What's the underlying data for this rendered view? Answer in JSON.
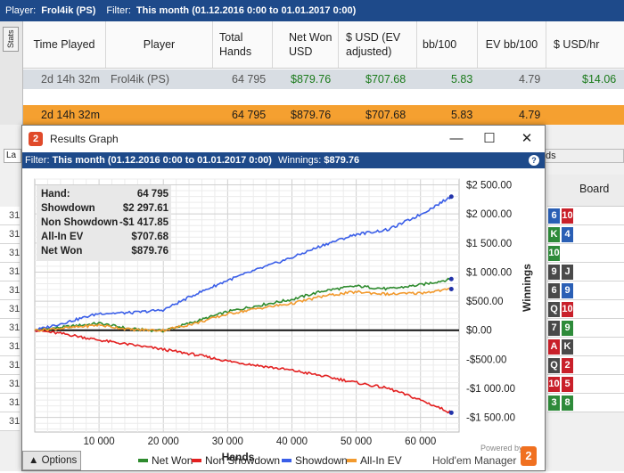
{
  "app": {
    "player_label": "Player:",
    "player_name": "Frol4ik (PS)",
    "filter_label": "Filter:",
    "filter_value": "This month (01.12.2016 0:00 to 01.01.2017 0:00)",
    "stats_tab": "Stats"
  },
  "table": {
    "headers": [
      "Time Played",
      "Player",
      "Total Hands",
      "Net Won USD",
      "$ USD (EV adjusted)",
      "bb/100",
      "EV bb/100",
      "$ USD/hr"
    ],
    "row1": {
      "time": "2d 14h 32m",
      "player": "Frol4ik (PS)",
      "hands": "64 795",
      "net_won": "$879.76",
      "ev_adj": "$707.68",
      "bb100": "5.83",
      "ev_bb100": "4.79",
      "usd_hr": "$14.06"
    },
    "row2": {
      "time": "2d 14h 32m",
      "hands": "64 795",
      "net_won": "$879.76",
      "ev_adj": "$707.68",
      "bb100": "5.83",
      "ev_bb100": "4.79"
    }
  },
  "background": {
    "left_dropdown": "La",
    "right_dropdown": "ds",
    "board_header": "Board",
    "left_rows": [
      "31",
      "31",
      "31",
      "31",
      "31",
      "31",
      "31",
      "31",
      "31",
      "31",
      "31",
      "31"
    ],
    "boards": [
      [
        {
          "r": "6",
          "c": "#2a5fb5"
        },
        {
          "r": "10",
          "c": "#c9202a"
        }
      ],
      [
        {
          "r": "K",
          "c": "#2e8b3a"
        },
        {
          "r": "4",
          "c": "#2a5fb5"
        }
      ],
      [
        {
          "r": "10",
          "c": "#2e8b3a"
        }
      ],
      [
        {
          "r": "9",
          "c": "#4a4a4a"
        },
        {
          "r": "J",
          "c": "#4a4a4a"
        }
      ],
      [
        {
          "r": "6",
          "c": "#4a4a4a"
        },
        {
          "r": "9",
          "c": "#2a5fb5"
        }
      ],
      [
        {
          "r": "Q",
          "c": "#4a4a4a"
        },
        {
          "r": "10",
          "c": "#c9202a"
        }
      ],
      [
        {
          "r": "7",
          "c": "#4a4a4a"
        },
        {
          "r": "9",
          "c": "#2e8b3a"
        }
      ],
      [
        {
          "r": "A",
          "c": "#c9202a"
        },
        {
          "r": "K",
          "c": "#4a4a4a"
        }
      ],
      [
        {
          "r": "Q",
          "c": "#4a4a4a"
        },
        {
          "r": "2",
          "c": "#c9202a"
        }
      ],
      [
        {
          "r": "10",
          "c": "#c9202a"
        },
        {
          "r": "5",
          "c": "#c9202a"
        }
      ],
      [
        {
          "r": "3",
          "c": "#2e8b3a"
        },
        {
          "r": "8",
          "c": "#2e8b3a"
        }
      ]
    ]
  },
  "graph_window": {
    "title": "Results Graph",
    "logo_text": "2",
    "filter_label": "Filter:",
    "filter_value": "This month (01.12.2016 0:00 to 01.01.2017 0:00)",
    "winnings_label": "Winnings:",
    "winnings_value": "$879.76",
    "options_label": "Options",
    "brand_powered": "Powered by",
    "brand_name": "Hold'em Manager",
    "stats": [
      {
        "label": "Hand:",
        "value": "64 795"
      },
      {
        "label": "Showdown",
        "value": "$2 297.61"
      },
      {
        "label": "Non Showdown",
        "value": "-$1 417.85"
      },
      {
        "label": "All-In EV",
        "value": "$707.68"
      },
      {
        "label": "Net Won",
        "value": "$879.76"
      }
    ]
  },
  "chart_data": {
    "type": "line",
    "xlabel": "Hands",
    "ylabel": "Winnings",
    "xlim": [
      0,
      66000
    ],
    "ylim": [
      -1750,
      2600
    ],
    "x_ticks": [
      10000,
      20000,
      30000,
      40000,
      50000,
      60000
    ],
    "x_tick_labels": [
      "10 000",
      "20 000",
      "30 000",
      "40 000",
      "50 000",
      "60 000"
    ],
    "y_ticks": [
      2500,
      2000,
      1500,
      1000,
      500,
      0,
      -500,
      -1000,
      -1500
    ],
    "y_tick_labels": [
      "$2 500.00",
      "$2 000.00",
      "$1 500.00",
      "$1 000.00",
      "$500.00",
      "$0.00",
      "-$500.00",
      "-$1 000.00",
      "-$1 500.00"
    ],
    "legend": [
      "Net Won",
      "Non Showdown",
      "Showdown",
      "All-In EV"
    ],
    "series": [
      {
        "name": "Net Won",
        "color": "#2e8b2e",
        "x": [
          0,
          5000,
          10000,
          15000,
          20000,
          25000,
          30000,
          35000,
          40000,
          45000,
          50000,
          55000,
          60000,
          64795
        ],
        "values": [
          0,
          60,
          120,
          20,
          -10,
          150,
          320,
          430,
          530,
          680,
          760,
          710,
          780,
          880
        ]
      },
      {
        "name": "Non Showdown",
        "color": "#e32020",
        "x": [
          0,
          5000,
          10000,
          15000,
          20000,
          25000,
          30000,
          35000,
          40000,
          45000,
          50000,
          55000,
          60000,
          64795
        ],
        "values": [
          0,
          -70,
          -170,
          -250,
          -330,
          -420,
          -530,
          -610,
          -690,
          -790,
          -900,
          -1000,
          -1200,
          -1418
        ]
      },
      {
        "name": "Showdown",
        "color": "#3a5ee8",
        "x": [
          0,
          5000,
          10000,
          15000,
          20000,
          25000,
          30000,
          35000,
          40000,
          45000,
          50000,
          55000,
          60000,
          64795
        ],
        "values": [
          0,
          140,
          290,
          300,
          350,
          620,
          860,
          1060,
          1250,
          1470,
          1650,
          1730,
          1990,
          2298
        ]
      },
      {
        "name": "All-In EV",
        "color": "#f29a2e",
        "x": [
          0,
          5000,
          10000,
          15000,
          20000,
          25000,
          30000,
          35000,
          40000,
          45000,
          50000,
          55000,
          60000,
          64795
        ],
        "values": [
          0,
          40,
          90,
          10,
          0,
          120,
          280,
          380,
          460,
          590,
          660,
          620,
          640,
          708
        ]
      }
    ]
  }
}
